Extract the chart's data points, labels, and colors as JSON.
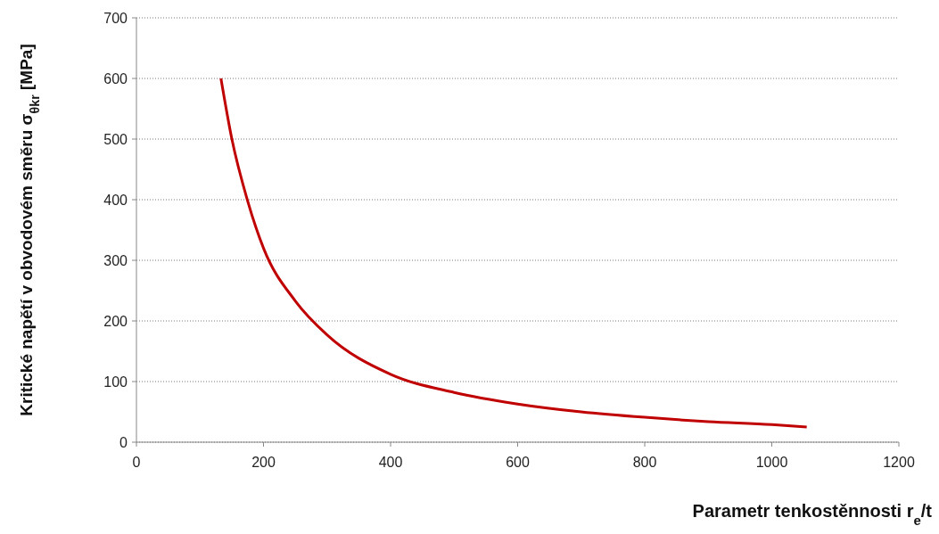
{
  "chart_data": {
    "type": "line",
    "xlabel": "Parametr tenkostěnnosti r$_{e}$/t",
    "ylabel": "Kritické napětí v obvodovém směru σ$_{θkr}$ [MPa]",
    "series": [
      {
        "color": "#c00000",
        "x": [
          133,
          150,
          175,
          200,
          250,
          300,
          400,
          500,
          600,
          700,
          800,
          900,
          1000,
          1055
        ],
        "values": [
          600,
          501,
          398,
          320,
          233,
          177,
          112,
          82,
          63,
          50,
          41,
          34,
          29,
          25
        ]
      }
    ],
    "xlim": [
      0,
      1200
    ],
    "xticks": [
      0,
      200,
      400,
      600,
      800,
      1000,
      1200
    ],
    "ylim": [
      0,
      700
    ],
    "yticks": [
      0,
      100,
      200,
      300,
      400,
      500,
      600,
      700
    ],
    "grid": "y",
    "marker": "none",
    "line_style": "solid"
  }
}
